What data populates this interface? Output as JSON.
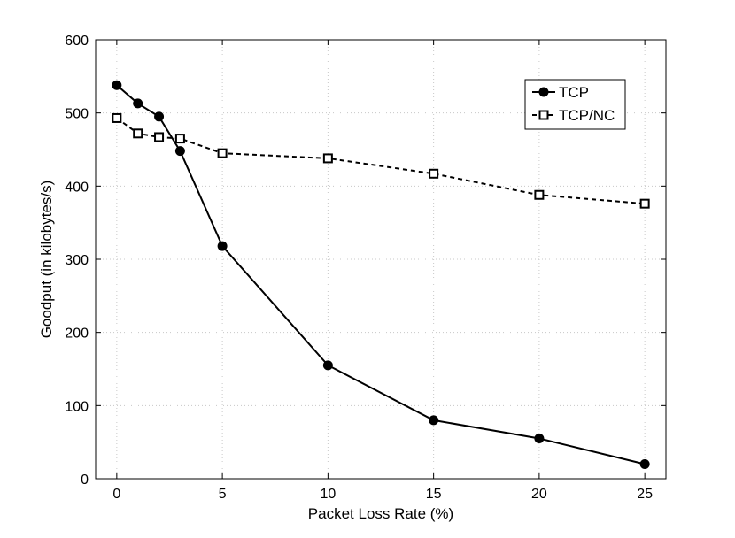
{
  "chart_data": {
    "type": "line",
    "title": "",
    "xlabel": "Packet Loss Rate (%)",
    "ylabel": "Goodput (in kilobytes/s)",
    "xlim": [
      -1,
      26
    ],
    "ylim": [
      0,
      600
    ],
    "xticks": [
      0,
      5,
      10,
      15,
      20,
      25
    ],
    "yticks": [
      0,
      100,
      200,
      300,
      400,
      500,
      600
    ],
    "grid": true,
    "legend_position": "top-right",
    "series": [
      {
        "name": "TCP",
        "marker": "filled-circle",
        "line_style": "solid",
        "color": "#000000",
        "x": [
          0,
          1,
          2,
          3,
          5,
          10,
          15,
          20,
          25
        ],
        "y": [
          538,
          513,
          495,
          448,
          318,
          155,
          80,
          55,
          20
        ]
      },
      {
        "name": "TCP/NC",
        "marker": "open-square",
        "line_style": "dashed",
        "color": "#000000",
        "x": [
          0,
          1,
          2,
          3,
          5,
          10,
          15,
          20,
          25
        ],
        "y": [
          493,
          472,
          467,
          465,
          445,
          438,
          417,
          388,
          376
        ]
      }
    ]
  }
}
